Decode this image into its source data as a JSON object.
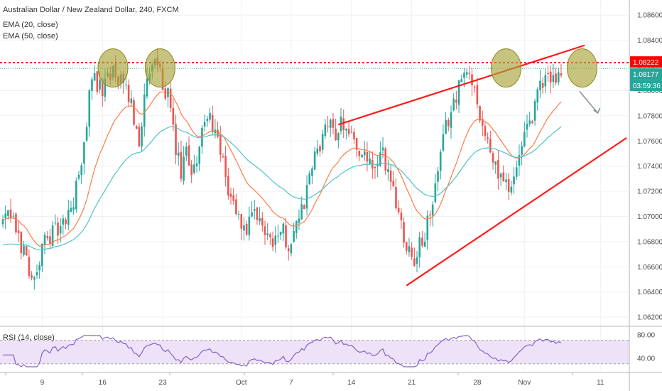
{
  "chart_data": {
    "type": "candlestick",
    "title": "Australian Dollar / New Zealand Dollar, 240, FXCM",
    "indicators": [
      "EMA (20, close)",
      "EMA (50, close)"
    ],
    "oscillator": {
      "name": "RSI (14, close)",
      "levels": [
        80.0,
        40.0
      ],
      "ylim": [
        20,
        90
      ]
    },
    "x_ticks": [
      "9",
      "16",
      "23",
      "Oct",
      "7",
      "14",
      "21",
      "28",
      "Nov",
      "11"
    ],
    "y_ticks": [
      "1.08600",
      "1.08400",
      "1.08200",
      "1.08000",
      "1.07800",
      "1.07600",
      "1.07400",
      "1.07200",
      "1.07000",
      "1.06800",
      "1.06600",
      "1.06400",
      "1.06200"
    ],
    "ylim": [
      1.0615,
      1.0872
    ],
    "resistance_level": 1.08222,
    "last_price": "1.08177",
    "countdown": "03:59:36",
    "price_path": [
      [
        0,
        1.0695
      ],
      [
        3,
        1.07
      ],
      [
        8,
        1.0672
      ],
      [
        12,
        1.0648
      ],
      [
        16,
        1.0681
      ],
      [
        19,
        1.0688
      ],
      [
        22,
        1.0689
      ],
      [
        26,
        1.0705
      ],
      [
        30,
        1.0738
      ],
      [
        33,
        1.0797
      ],
      [
        35,
        1.0812
      ],
      [
        38,
        1.0796
      ],
      [
        40,
        1.0818
      ],
      [
        44,
        1.0808
      ],
      [
        47,
        1.08
      ],
      [
        49,
        1.0788
      ],
      [
        52,
        1.0762
      ],
      [
        55,
        1.0805
      ],
      [
        58,
        1.0823
      ],
      [
        61,
        1.0807
      ],
      [
        63,
        1.0796
      ],
      [
        65,
        1.0765
      ],
      [
        68,
        1.0732
      ],
      [
        70,
        1.075
      ],
      [
        72,
        1.0737
      ],
      [
        74,
        1.0748
      ],
      [
        77,
        1.0775
      ],
      [
        80,
        1.0775
      ],
      [
        83,
        1.0748
      ],
      [
        86,
        1.0722
      ],
      [
        90,
        1.0698
      ],
      [
        93,
        1.0688
      ],
      [
        96,
        1.07
      ],
      [
        100,
        1.069
      ],
      [
        103,
        1.0682
      ],
      [
        106,
        1.0691
      ],
      [
        109,
        1.0678
      ],
      [
        112,
        1.0696
      ],
      [
        115,
        1.071
      ],
      [
        118,
        1.074
      ],
      [
        121,
        1.0758
      ],
      [
        124,
        1.0772
      ],
      [
        127,
        1.0768
      ],
      [
        130,
        1.0776
      ],
      [
        133,
        1.0765
      ],
      [
        136,
        1.0753
      ],
      [
        139,
        1.0741
      ],
      [
        142,
        1.0738
      ],
      [
        145,
        1.0748
      ],
      [
        148,
        1.073
      ],
      [
        151,
        1.0703
      ],
      [
        154,
        1.0679
      ],
      [
        157,
        1.0667
      ],
      [
        160,
        1.068
      ],
      [
        163,
        1.07
      ],
      [
        166,
        1.0735
      ],
      [
        169,
        1.077
      ],
      [
        172,
        1.0792
      ],
      [
        175,
        1.0808
      ],
      [
        178,
        1.0815
      ],
      [
        181,
        1.0793
      ],
      [
        183,
        1.0773
      ],
      [
        186,
        1.0748
      ],
      [
        189,
        1.0735
      ],
      [
        192,
        1.0725
      ],
      [
        194,
        1.0726
      ],
      [
        196,
        1.0738
      ],
      [
        199,
        1.076
      ],
      [
        202,
        1.078
      ],
      [
        205,
        1.0803
      ],
      [
        208,
        1.0812
      ],
      [
        211,
        1.0809
      ],
      [
        213,
        1.0818
      ]
    ],
    "annotations": {
      "red_lines": [
        {
          "from": [
            128,
            1.0773
          ],
          "to": [
            222,
            1.0836
          ]
        },
        {
          "from": [
            154,
            1.06451
          ],
          "to": [
            238,
            1.07625
          ]
        }
      ],
      "gray_arrow": {
        "from": [
          220,
          1.07995
        ],
        "to": [
          227,
          1.07822
        ]
      },
      "circles": [
        {
          "at": [
            42,
            1.0818
          ]
        },
        {
          "at": [
            60,
            1.0818
          ]
        },
        {
          "at": [
            192,
            1.0818
          ]
        },
        {
          "at": [
            221,
            1.0818
          ]
        }
      ]
    }
  },
  "colors": {
    "up": "#26a69a",
    "down": "#ef5350",
    "ema20": "#ff7a45",
    "ema50": "#4fc3c8",
    "resistance": "#ff0000",
    "last_price_tag": "#26a69a",
    "rsi_line": "#7e57c2",
    "rsi_band": "#ede2f8",
    "circle_fill": "#a9a43a",
    "trendline": "#ff1a1a",
    "arrow": "#8a9399"
  }
}
